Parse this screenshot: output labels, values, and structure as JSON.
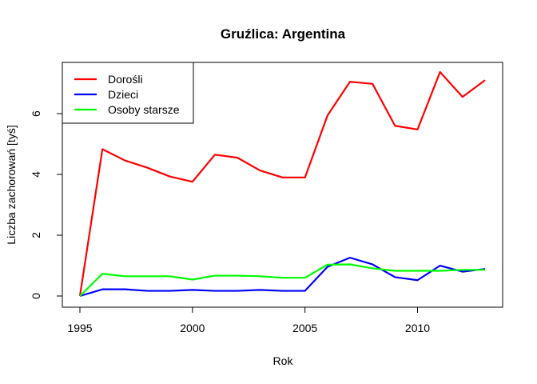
{
  "chart_data": {
    "type": "line",
    "title": "Gruźlica: Argentina",
    "xlabel": "Rok",
    "ylabel": "Liczba zachorowań [tyś]",
    "xlim": [
      1995,
      2013
    ],
    "ylim": [
      0,
      7.37
    ],
    "x_ticks": [
      1995,
      2000,
      2005,
      2010
    ],
    "y_ticks": [
      0,
      2,
      4,
      6
    ],
    "legend_position": "top-left",
    "x": [
      1995,
      1996,
      1997,
      1998,
      1999,
      2000,
      2001,
      2002,
      2003,
      2004,
      2005,
      2006,
      2007,
      2008,
      2009,
      2010,
      2011,
      2012,
      2013
    ],
    "series": [
      {
        "name": "Dorośli",
        "color": "#ff0000",
        "values": [
          0,
          4.83,
          4.46,
          4.22,
          3.93,
          3.76,
          4.65,
          4.55,
          4.13,
          3.9,
          3.9,
          5.94,
          7.05,
          6.98,
          5.6,
          5.48,
          7.37,
          6.55,
          7.1
        ]
      },
      {
        "name": "Dzieci",
        "color": "#0000ff",
        "values": [
          0,
          0.22,
          0.22,
          0.17,
          0.17,
          0.2,
          0.17,
          0.17,
          0.2,
          0.17,
          0.17,
          0.96,
          1.26,
          1.04,
          0.62,
          0.52,
          1.0,
          0.8,
          0.89
        ]
      },
      {
        "name": "Osoby starsze",
        "color": "#00ff00",
        "values": [
          0,
          0.73,
          0.65,
          0.65,
          0.65,
          0.54,
          0.67,
          0.67,
          0.65,
          0.6,
          0.6,
          1.03,
          1.04,
          0.91,
          0.83,
          0.83,
          0.83,
          0.86,
          0.86
        ]
      }
    ]
  }
}
